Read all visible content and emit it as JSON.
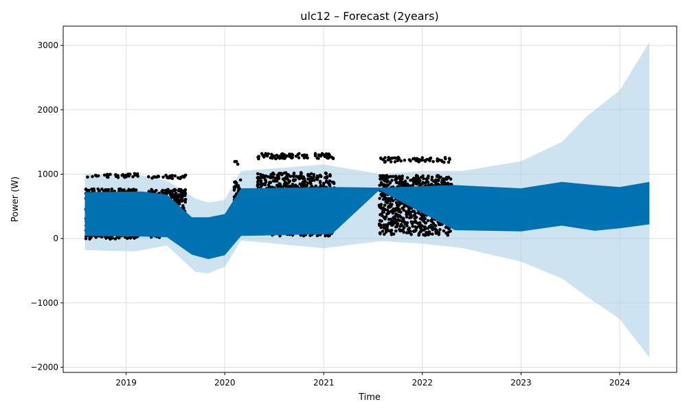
{
  "chart_data": {
    "type": "line",
    "title": "ulc12 – Forecast (2years)",
    "xlabel": "Time",
    "ylabel": "Power (W)",
    "x_ticks": [
      "2019",
      "2020",
      "2021",
      "2022",
      "2023",
      "2024"
    ],
    "y_ticks": [
      "−2000",
      "−1000",
      "0",
      "1000",
      "2000",
      "3000"
    ],
    "xlim": [
      "2018-05-13",
      "2024-07-30"
    ],
    "ylim": [
      -2080,
      3300
    ],
    "grid": true,
    "legend": "none",
    "colors": {
      "forecast": "#0072B2",
      "interval": "#a6cce4",
      "observed": "#000000",
      "grid": "#dddddd"
    },
    "series": [
      {
        "type": "band",
        "x": [
          "2018-08-01",
          "2019-02-01",
          "2019-06-01",
          "2019-09-15",
          "2019-11-01",
          "2020-01-01",
          "2020-03-01",
          "2021-01-01",
          "2021-08-01",
          "2022-01-01",
          "2022-06-01",
          "2023-01-01",
          "2023-06-01",
          "2023-09-01",
          "2024-01-01",
          "2024-04-20"
        ],
        "lower": [
          -180,
          -200,
          -110,
          -520,
          -540,
          -440,
          -30,
          -150,
          -40,
          -80,
          -150,
          -360,
          -620,
          -900,
          -1250,
          -1850
        ],
        "upper": [
          1000,
          1000,
          900,
          620,
          560,
          600,
          1050,
          1150,
          1000,
          1050,
          1050,
          1200,
          1500,
          1900,
          2300,
          3050
        ]
      },
      {
        "type": "band",
        "x": [
          "2018-08-01",
          "2019-03-01",
          "2019-06-01",
          "2019-09-01",
          "2019-11-01",
          "2020-01-01",
          "2020-03-01",
          "2021-02-01",
          "2021-07-25",
          "2022-05-01",
          "2023-01-01",
          "2023-06-01",
          "2023-10-01",
          "2024-01-01",
          "2024-04-20"
        ],
        "lower": [
          40,
          30,
          20,
          -250,
          -320,
          -260,
          40,
          70,
          750,
          130,
          110,
          200,
          120,
          160,
          220
        ],
        "upper": [
          720,
          730,
          680,
          330,
          330,
          380,
          780,
          800,
          790,
          830,
          780,
          880,
          830,
          800,
          880
        ]
      },
      {
        "type": "line",
        "x": [
          "2021-01-25",
          "2021-07-25"
        ],
        "y": [
          140,
          790
        ]
      },
      {
        "type": "line",
        "x": [
          "2020-03-05",
          "2020-05-01"
        ],
        "y": [
          760,
          760
        ]
      },
      {
        "type": "scatter",
        "segments": [
          {
            "start": "2018-08-05",
            "end": "2019-02-15",
            "low": -10,
            "high": 1010
          },
          {
            "start": "2019-03-25",
            "end": "2019-08-10",
            "low": 10,
            "high": 990
          },
          {
            "start": "2020-02-05",
            "end": "2020-03-05",
            "low": 30,
            "high": 1200
          },
          {
            "start": "2020-05-01",
            "end": "2021-02-10",
            "low": 40,
            "high": 1320
          },
          {
            "start": "2021-07-25",
            "end": "2022-04-20",
            "low": 50,
            "high": 1260
          }
        ]
      }
    ]
  }
}
